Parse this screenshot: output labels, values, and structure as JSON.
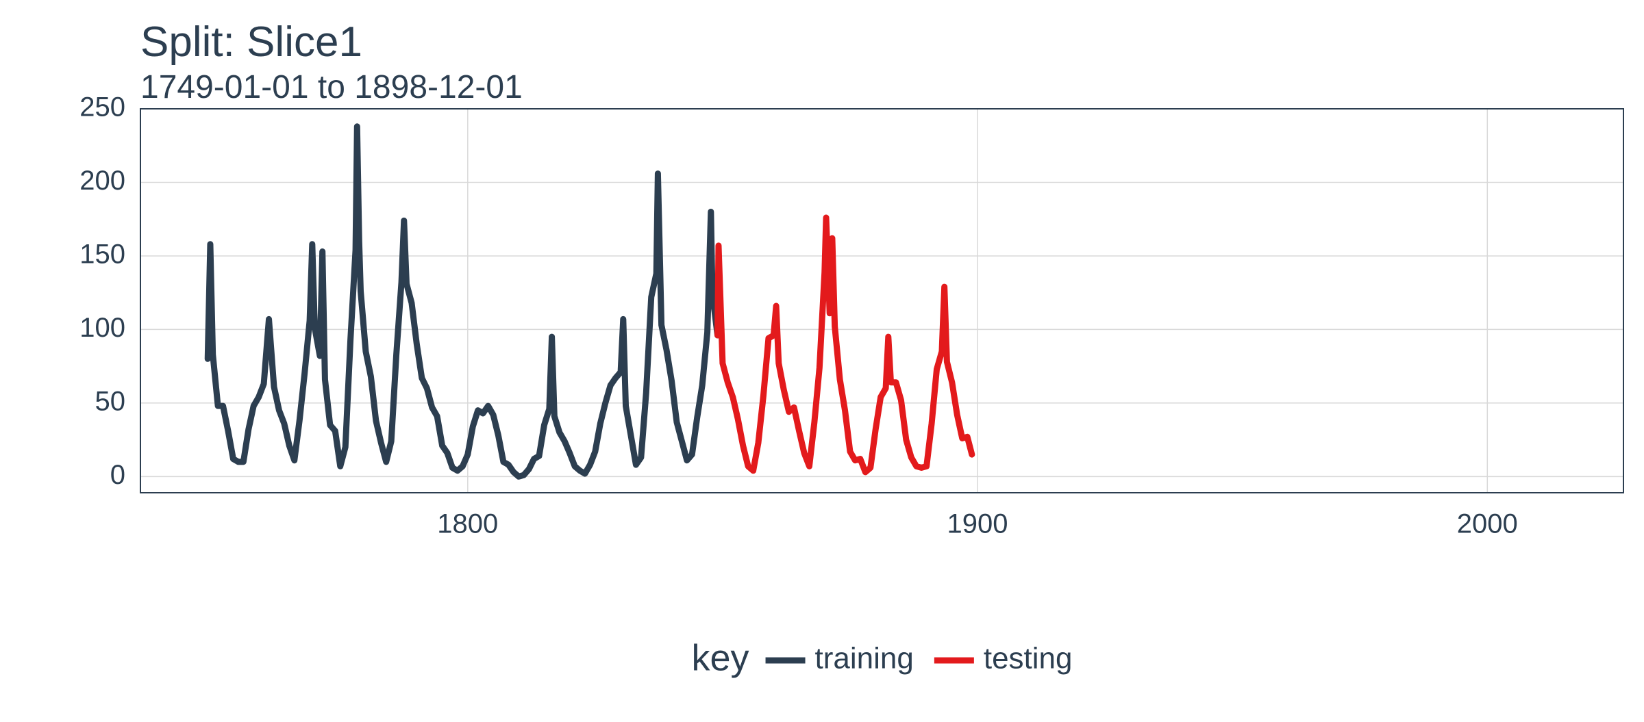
{
  "chart_data": {
    "type": "line",
    "title": "Split: Slice1",
    "subtitle": "1749-01-01 to 1898-12-01",
    "legend_title": "key",
    "legend_position": "bottom",
    "grid": true,
    "xlim": [
      1735.8,
      2026.7
    ],
    "xticks": [
      1800,
      1900,
      2000
    ],
    "ylim": [
      -11,
      250
    ],
    "yticks": [
      0,
      50,
      100,
      150,
      200,
      250
    ],
    "series": [
      {
        "name": "training",
        "color": "#2c3e50",
        "x": [
          1749,
          1749.5,
          1750,
          1751,
          1752,
          1753,
          1754,
          1755,
          1756,
          1757,
          1758,
          1759,
          1760,
          1761,
          1762,
          1763,
          1764,
          1765,
          1766,
          1767,
          1768,
          1769,
          1769.5,
          1770,
          1771,
          1771.5,
          1772,
          1773,
          1774,
          1775,
          1776,
          1777,
          1778,
          1778.3,
          1778.7,
          1779,
          1780,
          1781,
          1782,
          1783,
          1784,
          1785,
          1786,
          1787,
          1787.5,
          1788,
          1789,
          1790,
          1791,
          1792,
          1793,
          1794,
          1795,
          1796,
          1797,
          1798,
          1799,
          1800,
          1801,
          1802,
          1803,
          1804,
          1805,
          1806,
          1807,
          1808,
          1809,
          1810,
          1811,
          1812,
          1813,
          1814,
          1815,
          1816,
          1816.5,
          1817,
          1818,
          1819,
          1820,
          1821,
          1822,
          1823,
          1824,
          1825,
          1826,
          1827,
          1828,
          1829,
          1830,
          1830.5,
          1831,
          1832,
          1833,
          1834,
          1835,
          1836,
          1837,
          1837.3,
          1838,
          1839,
          1840,
          1841,
          1842,
          1843,
          1844,
          1845,
          1846,
          1847,
          1847.7,
          1848,
          1849
        ],
        "values": [
          80,
          158,
          83,
          48,
          48,
          31,
          12,
          10,
          10,
          32,
          48,
          54,
          63,
          107,
          61,
          45,
          36,
          21,
          11,
          38,
          70,
          106,
          158,
          101,
          82,
          153,
          66,
          35,
          31,
          7,
          20,
          93,
          154,
          238,
          160,
          126,
          85,
          68,
          38,
          23,
          10,
          24,
          83,
          132,
          174,
          131,
          118,
          90,
          67,
          60,
          47,
          41,
          21,
          16,
          6,
          4,
          7,
          15,
          34,
          45,
          43,
          48,
          42,
          28,
          10,
          8,
          3,
          0,
          1,
          5,
          12,
          14,
          35,
          46,
          95,
          41,
          30,
          24,
          16,
          7,
          4,
          2,
          8,
          17,
          36,
          50,
          62,
          67,
          71,
          107,
          48,
          28,
          8,
          13,
          57,
          122,
          138,
          206,
          103,
          86,
          65,
          37,
          24,
          11,
          15,
          40,
          62,
          98,
          180,
          124,
          96
        ]
      },
      {
        "name": "testing",
        "color": "#e31a1c",
        "x": [
          1849,
          1849.2,
          1850,
          1851,
          1852,
          1853,
          1854,
          1855,
          1856,
          1857,
          1858,
          1859,
          1860,
          1860.5,
          1861,
          1862,
          1863,
          1864,
          1865,
          1866,
          1867,
          1868,
          1869,
          1870,
          1870.3,
          1871,
          1871.5,
          1872,
          1873,
          1874,
          1875,
          1876,
          1877,
          1878,
          1879,
          1880,
          1881,
          1882,
          1882.5,
          1883,
          1884,
          1885,
          1886,
          1887,
          1888,
          1889,
          1890,
          1891,
          1892,
          1893,
          1893.5,
          1894,
          1895,
          1896,
          1897,
          1898,
          1898.9
        ],
        "values": [
          96,
          157,
          77,
          64,
          54,
          39,
          21,
          7,
          4,
          23,
          55,
          94,
          96,
          116,
          77,
          59,
          44,
          47,
          31,
          16,
          7,
          37,
          74,
          139,
          176,
          111,
          162,
          102,
          66,
          45,
          17,
          11,
          12,
          3,
          6,
          32,
          54,
          60,
          95,
          64,
          64,
          52,
          25,
          13,
          7,
          6,
          7,
          36,
          73,
          85,
          129,
          78,
          64,
          42,
          26,
          27,
          15
        ]
      }
    ]
  }
}
